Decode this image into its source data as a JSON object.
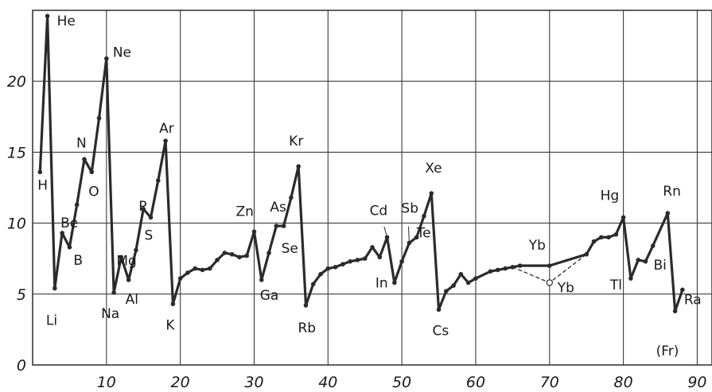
{
  "chart_data": {
    "type": "line",
    "title": "",
    "xlabel": "",
    "ylabel": "",
    "xlim": [
      0,
      92
    ],
    "ylim": [
      0,
      25
    ],
    "grid": true,
    "x_ticks": [
      10,
      20,
      30,
      40,
      50,
      60,
      70,
      80,
      90
    ],
    "x_tick_labels": [
      "10",
      "20",
      "30",
      "40",
      "50",
      "60",
      "70",
      "80",
      "90"
    ],
    "y_ticks": [
      0,
      5,
      10,
      15,
      20
    ],
    "y_tick_labels": [
      "0",
      "5",
      "10",
      "15",
      "20"
    ],
    "series": [
      {
        "name": "",
        "x": [
          1,
          2,
          3,
          4,
          5,
          6,
          7,
          8,
          9,
          10,
          11,
          12,
          13,
          14,
          15,
          16,
          17,
          18,
          19,
          20,
          21,
          22,
          23,
          24,
          25,
          26,
          27,
          28,
          29,
          30,
          31,
          32,
          33,
          34,
          35,
          36,
          37,
          38,
          39,
          40,
          41,
          42,
          43,
          44,
          45,
          46,
          47,
          48,
          49,
          50,
          51,
          52,
          53,
          54,
          55,
          56,
          57,
          58,
          59,
          60,
          62,
          63,
          64,
          65,
          66,
          70,
          75,
          76,
          77,
          78,
          79,
          80,
          81,
          82,
          83,
          84,
          86,
          87,
          88
        ],
        "y": [
          13.6,
          24.6,
          5.4,
          9.3,
          8.3,
          11.3,
          14.5,
          13.6,
          17.4,
          21.6,
          5.1,
          7.6,
          6.0,
          8.1,
          11.0,
          10.4,
          13.0,
          15.8,
          4.3,
          6.1,
          6.5,
          6.8,
          6.7,
          6.8,
          7.4,
          7.9,
          7.8,
          7.6,
          7.7,
          9.4,
          6.0,
          7.9,
          9.8,
          9.8,
          11.8,
          14.0,
          4.2,
          5.7,
          6.4,
          6.8,
          6.9,
          7.1,
          7.3,
          7.4,
          7.5,
          8.3,
          7.6,
          9.0,
          5.8,
          7.3,
          8.6,
          9.0,
          10.5,
          12.1,
          3.9,
          5.2,
          5.6,
          6.4,
          5.8,
          6.1,
          6.6,
          6.7,
          6.8,
          6.9,
          7.0,
          7.0,
          7.8,
          8.7,
          9.0,
          9.0,
          9.2,
          10.4,
          6.1,
          7.4,
          7.3,
          8.4,
          10.7,
          3.8,
          5.3
        ]
      },
      {
        "name": "",
        "style": "dashed",
        "x": [
          65,
          70,
          75
        ],
        "y": [
          6.9,
          5.8,
          7.8
        ]
      }
    ],
    "annotations": [
      {
        "text": "He",
        "x": 2,
        "y": 24.6
      },
      {
        "text": "H",
        "x": 1,
        "y": 13.6
      },
      {
        "text": "Ne",
        "x": 10,
        "y": 21.6
      },
      {
        "text": "N",
        "x": 7,
        "y": 14.5
      },
      {
        "text": "O",
        "x": 8,
        "y": 13.6
      },
      {
        "text": "Be",
        "x": 4,
        "y": 9.3
      },
      {
        "text": "B",
        "x": 5,
        "y": 8.3
      },
      {
        "text": "Li",
        "x": 3,
        "y": 5.4
      },
      {
        "text": "Ar",
        "x": 18,
        "y": 15.8
      },
      {
        "text": "P",
        "x": 15,
        "y": 11.0
      },
      {
        "text": "S",
        "x": 16,
        "y": 10.4
      },
      {
        "text": "Mg",
        "x": 12,
        "y": 7.6
      },
      {
        "text": "Al",
        "x": 13,
        "y": 6.0
      },
      {
        "text": "Na",
        "x": 11,
        "y": 5.1
      },
      {
        "text": "K",
        "x": 19,
        "y": 4.3
      },
      {
        "text": "Zn",
        "x": 30,
        "y": 9.4
      },
      {
        "text": "As",
        "x": 33,
        "y": 9.8
      },
      {
        "text": "Se",
        "x": 34,
        "y": 9.8
      },
      {
        "text": "Ga",
        "x": 31,
        "y": 6.0
      },
      {
        "text": "Kr",
        "x": 36,
        "y": 14.0
      },
      {
        "text": "Rb",
        "x": 37,
        "y": 4.2
      },
      {
        "text": "Cd",
        "x": 48,
        "y": 9.0
      },
      {
        "text": "Sb",
        "x": 51,
        "y": 8.6
      },
      {
        "text": "Te",
        "x": 52,
        "y": 9.0
      },
      {
        "text": "In",
        "x": 49,
        "y": 5.8
      },
      {
        "text": "Xe",
        "x": 54,
        "y": 12.1
      },
      {
        "text": "Cs",
        "x": 55,
        "y": 3.9
      },
      {
        "text": "Yb",
        "x": 70,
        "y": 7.0
      },
      {
        "text": "Yb",
        "x": 70,
        "y": 5.8
      },
      {
        "text": "Hg",
        "x": 80,
        "y": 10.4
      },
      {
        "text": "Tl",
        "x": 81,
        "y": 6.1
      },
      {
        "text": "Bi",
        "x": 83,
        "y": 7.3
      },
      {
        "text": "Rn",
        "x": 86,
        "y": 10.7
      },
      {
        "text": "Ra",
        "x": 88,
        "y": 5.3
      },
      {
        "text": "(Fr)",
        "x": 87,
        "y": 3.8
      }
    ]
  },
  "colors": {
    "line": "#2b2b2b",
    "grid": "#3a3a3a",
    "text": "#1a1a1a"
  }
}
